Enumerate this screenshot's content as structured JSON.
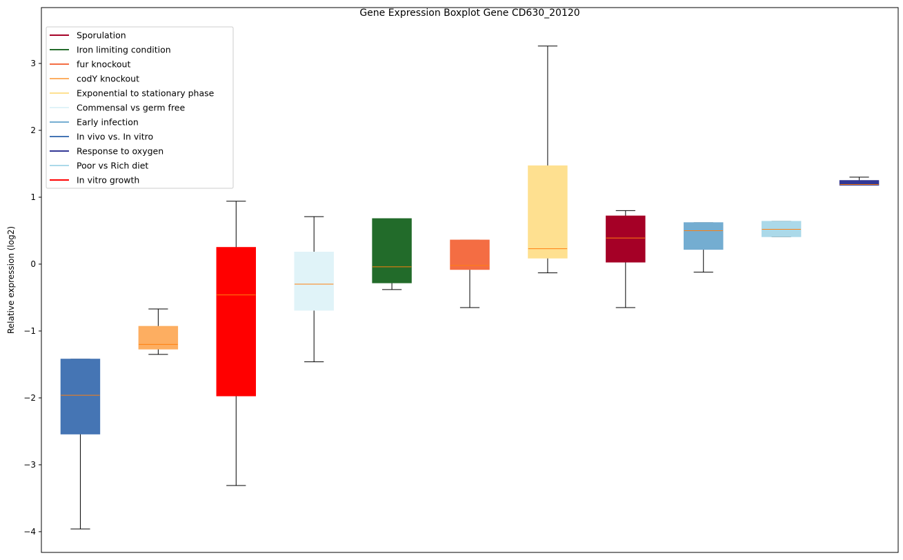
{
  "chart_data": {
    "type": "boxplot",
    "title": "Gene Expression Boxplot Gene CD630_20120",
    "xlabel": "",
    "ylabel": "Relative expression (log2)",
    "ylim": [
      -4.31,
      3.835
    ],
    "yticks": [
      -4,
      -3,
      -2,
      -1,
      0,
      1,
      2,
      3
    ],
    "ytick_labels": [
      "−4",
      "−3",
      "−2",
      "−1",
      "0",
      "1",
      "2",
      "3"
    ],
    "grid": false,
    "legend_position": "top-left",
    "median_color": "#ff7f0e",
    "legend": [
      {
        "label": "Sporulation",
        "color": "#a50026"
      },
      {
        "label": "Iron limiting condition",
        "color": "#226b2a"
      },
      {
        "label": "fur knockout",
        "color": "#f46d43"
      },
      {
        "label": "codY knockout",
        "color": "#fdae61"
      },
      {
        "label": "Exponential to stationary phase",
        "color": "#fee090"
      },
      {
        "label": "Commensal vs germ free",
        "color": "#e0f3f8"
      },
      {
        "label": "Early infection",
        "color": "#74add1"
      },
      {
        "label": "In vivo vs. In vitro",
        "color": "#4575b4"
      },
      {
        "label": "Response to oxygen",
        "color": "#313695"
      },
      {
        "label": "Poor vs Rich diet",
        "color": "#abd9e9"
      },
      {
        "label": "In vitro growth",
        "color": "#ff0000"
      }
    ],
    "boxes": [
      {
        "group": "In vivo vs. In vitro",
        "color": "#4575b4",
        "whislo": -3.96,
        "q1": -2.54,
        "med": -1.96,
        "q3": -1.42,
        "whishi": -1.42
      },
      {
        "group": "codY knockout",
        "color": "#fdae61",
        "whislo": -1.35,
        "q1": -1.27,
        "med": -1.2,
        "q3": -0.93,
        "whishi": -0.67
      },
      {
        "group": "In vitro growth",
        "color": "#ff0000",
        "whislo": -3.31,
        "q1": -1.97,
        "med": -0.46,
        "q3": 0.25,
        "whishi": 0.94
      },
      {
        "group": "Commensal vs germ free",
        "color": "#e0f3f8",
        "whislo": -1.46,
        "q1": -0.69,
        "med": -0.3,
        "q3": 0.18,
        "whishi": 0.71
      },
      {
        "group": "Iron limiting condition",
        "color": "#226b2a",
        "whislo": -0.38,
        "q1": -0.28,
        "med": -0.04,
        "q3": 0.68,
        "whishi": 0.68
      },
      {
        "group": "fur knockout",
        "color": "#f46d43",
        "whislo": -0.65,
        "q1": -0.08,
        "med": -0.02,
        "q3": 0.36,
        "whishi": 0.36
      },
      {
        "group": "Exponential to stationary phase",
        "color": "#fee090",
        "whislo": -0.13,
        "q1": 0.09,
        "med": 0.23,
        "q3": 1.47,
        "whishi": 3.26
      },
      {
        "group": "Sporulation",
        "color": "#a50026",
        "whislo": -0.65,
        "q1": 0.03,
        "med": 0.39,
        "q3": 0.72,
        "whishi": 0.8
      },
      {
        "group": "Early infection",
        "color": "#74add1",
        "whislo": -0.12,
        "q1": 0.22,
        "med": 0.5,
        "q3": 0.62,
        "whishi": 0.62
      },
      {
        "group": "Poor vs Rich diet",
        "color": "#abd9e9",
        "whislo": 0.41,
        "q1": 0.41,
        "med": 0.52,
        "q3": 0.64,
        "whishi": 0.64
      },
      {
        "group": "Response to oxygen",
        "color": "#313695",
        "whislo": 1.18,
        "q1": 1.18,
        "med": 1.19,
        "q3": 1.25,
        "whishi": 1.3
      }
    ]
  }
}
